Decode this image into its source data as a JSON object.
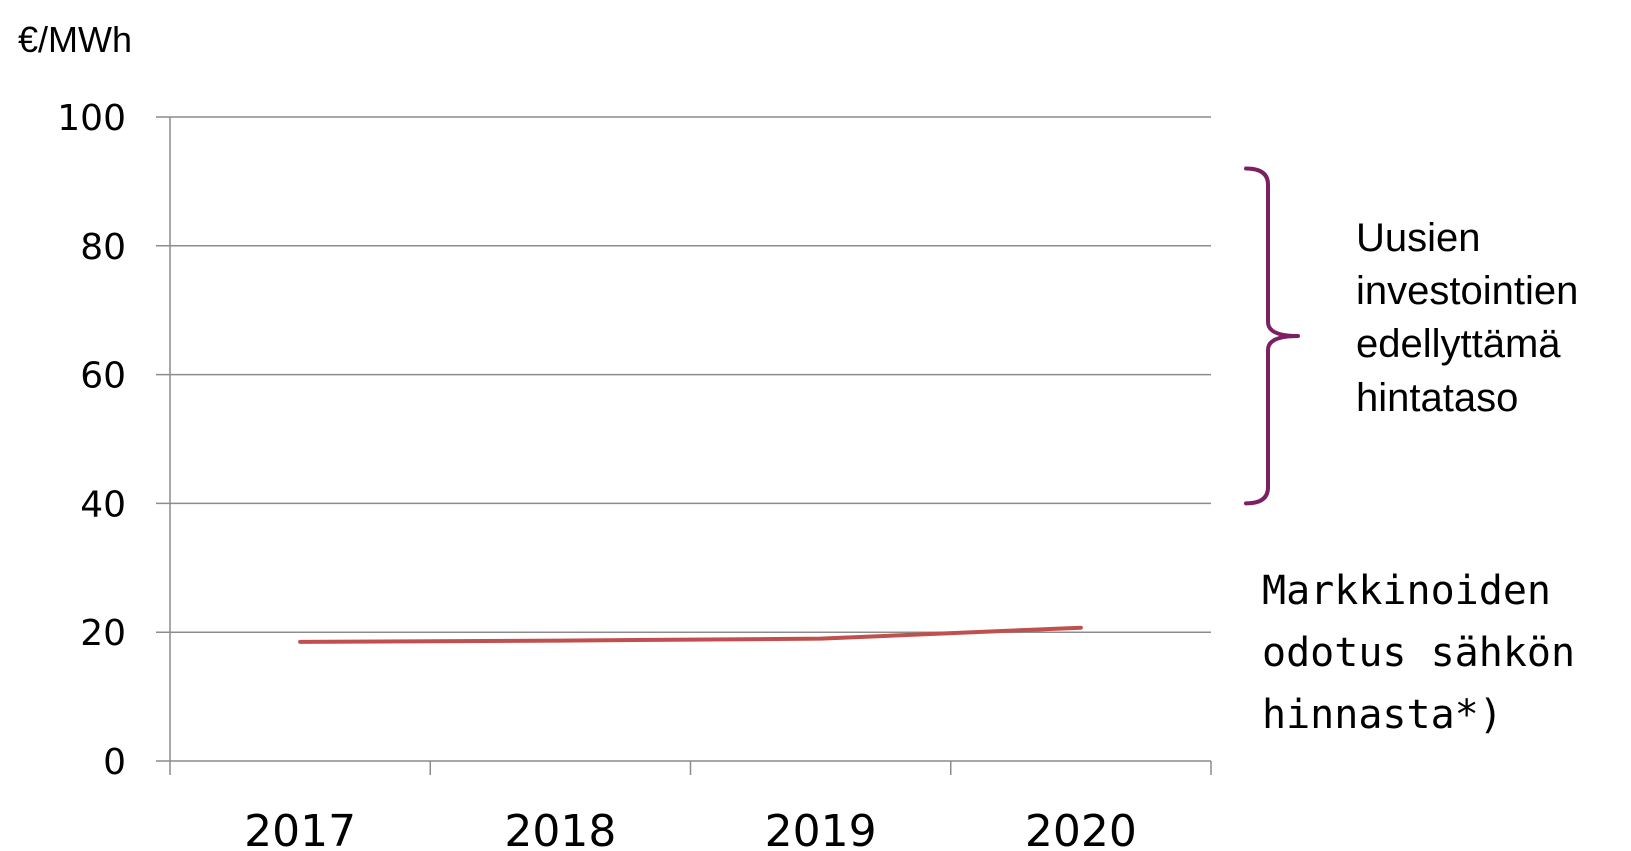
{
  "chart_data": {
    "type": "line",
    "ylabel": "€/MWh",
    "xlabel": "",
    "categories": [
      "2017",
      "2018",
      "2019",
      "2020"
    ],
    "ylim": [
      0,
      100
    ],
    "yticks": [
      0,
      20,
      40,
      60,
      80,
      100
    ],
    "grid": true,
    "series": [
      {
        "values": [
          18.5,
          18.7,
          19.0,
          20.7
        ]
      }
    ],
    "annotations": [
      {
        "lines": [
          "Uusien",
          "investointien",
          "edellyttämä",
          "hintataso"
        ],
        "range": [
          40,
          92
        ]
      },
      {
        "lines": [
          "Markkinoiden",
          "odotus sähkön",
          "hinnasta*)"
        ]
      }
    ]
  },
  "colors": {
    "line": "#c0504d",
    "bracket": "#7b2063",
    "grid": "#8c8c8c",
    "axis": "#8c8c8c"
  }
}
